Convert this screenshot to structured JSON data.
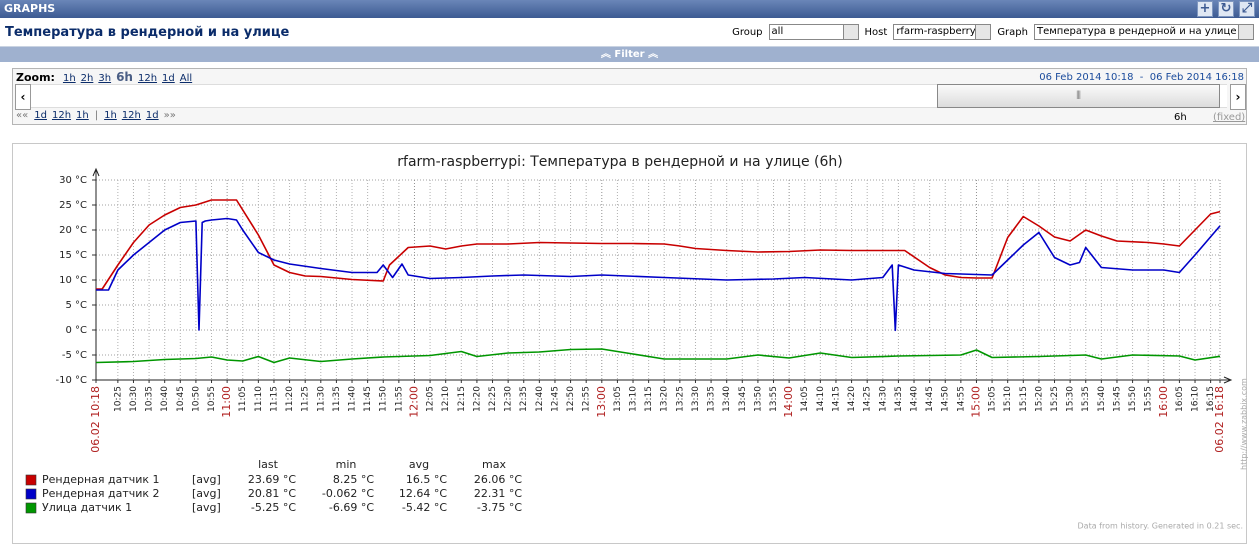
{
  "header": {
    "title": "GRAPHS"
  },
  "subheader": {
    "title": "Температура в рендерной и на улице",
    "filters": [
      {
        "label": "Group",
        "value": "all"
      },
      {
        "label": "Host",
        "value": "rfarm-raspberrypi"
      },
      {
        "label": "Graph",
        "value": "Температура в рендерной и на улице"
      }
    ]
  },
  "filter": {
    "label": "Filter"
  },
  "zoom": {
    "label": "Zoom:",
    "options": [
      "1h",
      "2h",
      "3h",
      "6h",
      "12h",
      "1d",
      "All"
    ],
    "selected": 3,
    "from": "06 Feb 2014 10:18",
    "separator": "-",
    "to": "06 Feb 2014 16:18",
    "back": [
      "««",
      "1d",
      "12h",
      "1h"
    ],
    "divider": "|",
    "forward": [
      "1h",
      "12h",
      "1d",
      "»»"
    ],
    "period": "6h",
    "fixed": "(fixed)"
  },
  "chart_data": {
    "type": "line",
    "title": "rfarm-raspberrypi: Температура в рендерной и на улице (6h)",
    "xlim": [
      "10:18",
      "16:18"
    ],
    "xticks": [
      {
        "value": "10:18",
        "label": "06.02 10:18"
      },
      "10:25",
      "10:30",
      "10:35",
      "10:40",
      "10:45",
      "10:50",
      "10:55",
      "11:00",
      "11:05",
      "11:10",
      "11:15",
      "11:20",
      "11:25",
      "11:30",
      "11:35",
      "11:40",
      "11:45",
      "11:50",
      "11:55",
      "12:00",
      "12:05",
      "12:10",
      "12:15",
      "12:20",
      "12:25",
      "12:30",
      "12:35",
      "12:40",
      "12:45",
      "12:50",
      "12:55",
      "13:00",
      "13:05",
      "13:10",
      "13:15",
      "13:20",
      "13:25",
      "13:30",
      "13:35",
      "13:40",
      "13:45",
      "13:50",
      "13:55",
      "14:00",
      "14:05",
      "14:10",
      "14:15",
      "14:20",
      "14:25",
      "14:30",
      "14:35",
      "14:40",
      "14:45",
      "14:50",
      "14:55",
      "15:00",
      "15:05",
      "15:10",
      "15:15",
      "15:20",
      "15:25",
      "15:30",
      "15:35",
      "15:40",
      "15:45",
      "15:50",
      "15:55",
      "16:00",
      "16:05",
      "16:10",
      "16:15",
      {
        "value": "16:18",
        "label": "06.02 16:18"
      }
    ],
    "ylim": [
      -10,
      30
    ],
    "yticks": [
      {
        "value": -10,
        "label": "-10 °C"
      },
      {
        "value": -5,
        "label": "-5 °C"
      },
      {
        "value": 0,
        "label": "0 °C"
      },
      {
        "value": 5,
        "label": "5 °C"
      },
      {
        "value": 10,
        "label": "10 °C"
      },
      {
        "value": 15,
        "label": "15 °C"
      },
      {
        "value": 20,
        "label": "20 °C"
      },
      {
        "value": 25,
        "label": "25 °C"
      },
      {
        "value": 30,
        "label": "30 °C"
      }
    ],
    "grid": true,
    "legend": {
      "columns": [
        "last",
        "min",
        "avg",
        "max"
      ]
    },
    "series": [
      {
        "name": "Рендерная датчик 1",
        "color": "#c80000",
        "function": "[avg]",
        "stats": [
          "23.69 °C",
          "8.25 °C",
          "16.5 °C",
          "26.06 °C"
        ],
        "x": [
          "10:18",
          "10:20",
          "10:25",
          "10:30",
          "10:35",
          "10:40",
          "10:45",
          "10:50",
          "10:55",
          "11:00",
          "11:03",
          "11:10",
          "11:15",
          "11:20",
          "11:25",
          "11:30",
          "11:40",
          "11:50",
          "11:52",
          "11:58",
          "12:05",
          "12:10",
          "12:15",
          "12:20",
          "12:30",
          "12:40",
          "12:50",
          "13:00",
          "13:10",
          "13:20",
          "13:25",
          "13:30",
          "13:40",
          "13:50",
          "14:00",
          "14:10",
          "14:20",
          "14:30",
          "14:37",
          "14:45",
          "14:50",
          "14:55",
          "15:00",
          "15:05",
          "15:10",
          "15:15",
          "15:20",
          "15:25",
          "15:30",
          "15:35",
          "15:40",
          "15:45",
          "15:55",
          "16:00",
          "16:05",
          "16:10",
          "16:15",
          "16:18"
        ],
        "values": [
          8.2,
          8.2,
          13,
          17.5,
          21,
          23,
          24.5,
          25,
          26,
          26,
          26,
          19,
          13,
          11.5,
          10.8,
          10.7,
          10.1,
          9.8,
          13,
          16.5,
          16.8,
          16.2,
          16.8,
          17.2,
          17.2,
          17.5,
          17.4,
          17.3,
          17.3,
          17.2,
          16.8,
          16.3,
          15.9,
          15.6,
          15.7,
          16,
          15.9,
          15.9,
          15.9,
          12.5,
          11,
          10.5,
          10.4,
          10.4,
          18.5,
          22.7,
          20.8,
          18.6,
          17.8,
          20,
          18.8,
          17.8,
          17.5,
          17.2,
          16.8,
          20,
          23.2,
          23.69
        ]
      },
      {
        "name": "Рендерная датчик 2",
        "color": "#0000c8",
        "function": "[avg]",
        "stats": [
          "20.81 °C",
          "-0.062 °C",
          "12.64 °C",
          "22.31 °C"
        ],
        "x": [
          "10:18",
          "10:22",
          "10:25",
          "10:30",
          "10:35",
          "10:40",
          "10:45",
          "10:50",
          "10:51",
          "10:52",
          "10:53",
          "10:55",
          "11:00",
          "11:03",
          "11:05",
          "11:10",
          "11:15",
          "11:20",
          "11:30",
          "11:40",
          "11:48",
          "11:50",
          "11:53",
          "11:56",
          "11:58",
          "12:05",
          "12:15",
          "12:25",
          "12:35",
          "12:50",
          "13:00",
          "13:20",
          "13:40",
          "13:55",
          "14:05",
          "14:20",
          "14:30",
          "14:33",
          "14:34",
          "14:35",
          "14:40",
          "14:50",
          "15:05",
          "15:10",
          "15:15",
          "15:20",
          "15:25",
          "15:30",
          "15:33",
          "15:35",
          "15:40",
          "15:50",
          "16:00",
          "16:05",
          "16:10",
          "16:18"
        ],
        "values": [
          8,
          8,
          12,
          15,
          17.5,
          20,
          21.5,
          21.8,
          0,
          21.5,
          21.8,
          22,
          22.3,
          22,
          20,
          15.5,
          14,
          13.2,
          12.3,
          11.5,
          11.5,
          13,
          10.5,
          13.2,
          11,
          10.3,
          10.5,
          10.8,
          11,
          10.7,
          11,
          10.5,
          10,
          10.2,
          10.5,
          10,
          10.5,
          13,
          -0.06,
          13,
          12,
          11.3,
          11,
          14,
          17,
          19.5,
          14.5,
          13,
          13.5,
          16.5,
          12.5,
          12,
          12,
          11.5,
          15,
          20.81
        ]
      },
      {
        "name": "Улица датчик 1",
        "color": "#009600",
        "function": "[avg]",
        "stats": [
          "-5.25 °C",
          "-6.69 °C",
          "-5.42 °C",
          "-3.75 °C"
        ],
        "x": [
          "10:18",
          "10:30",
          "10:40",
          "10:50",
          "10:55",
          "11:00",
          "11:05",
          "11:10",
          "11:15",
          "11:20",
          "11:30",
          "11:40",
          "11:50",
          "12:05",
          "12:15",
          "12:20",
          "12:30",
          "12:40",
          "12:50",
          "13:00",
          "13:10",
          "13:20",
          "13:40",
          "13:50",
          "14:00",
          "14:10",
          "14:20",
          "14:35",
          "14:55",
          "15:00",
          "15:05",
          "15:20",
          "15:35",
          "15:40",
          "15:50",
          "16:05",
          "16:10",
          "16:18"
        ],
        "values": [
          -6.5,
          -6.3,
          -5.9,
          -5.7,
          -5.4,
          -6,
          -6.2,
          -5.3,
          -6.5,
          -5.6,
          -6.3,
          -5.8,
          -5.4,
          -5.1,
          -4.3,
          -5.3,
          -4.6,
          -4.4,
          -3.9,
          -3.8,
          -4.8,
          -5.8,
          -5.8,
          -5,
          -5.6,
          -4.6,
          -5.5,
          -5.2,
          -5,
          -4,
          -5.5,
          -5.3,
          -5,
          -5.8,
          -5,
          -5.2,
          -6,
          -5.25
        ]
      }
    ],
    "watermark": "http://www.zabbix.com",
    "footer": "Data from history. Generated in 0.21 sec."
  }
}
